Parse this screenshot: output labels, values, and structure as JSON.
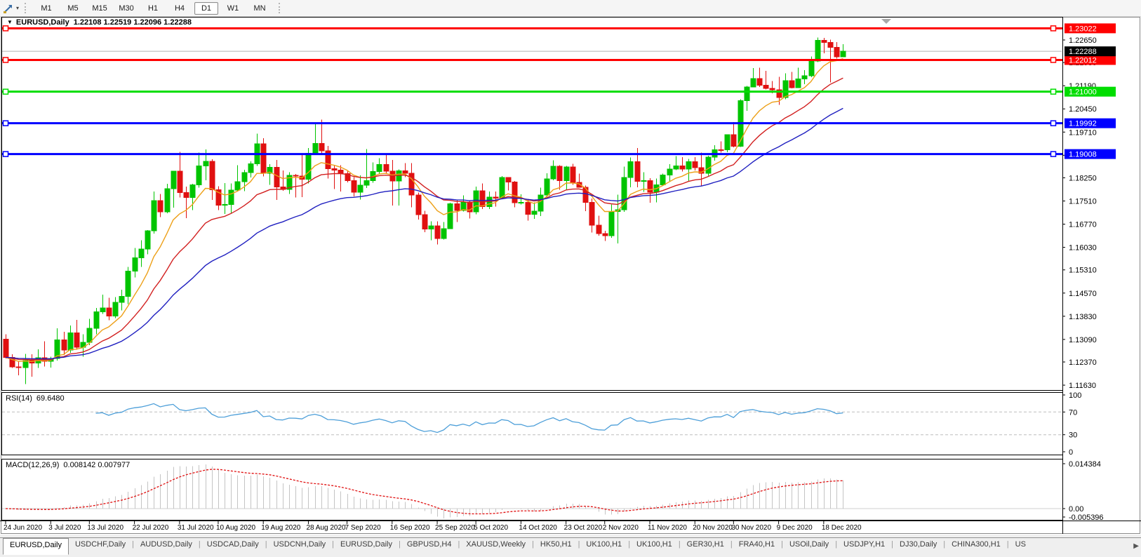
{
  "toolbar": {
    "timeframes": [
      "M1",
      "M5",
      "M15",
      "M30",
      "H1",
      "H4",
      "D1",
      "W1",
      "MN"
    ],
    "active_timeframe": "D1"
  },
  "chart_header": {
    "collapse_arrow": "▼",
    "title": "EURUSD,Daily",
    "ohlc": "1.22108 1.22519 1.22096 1.22288"
  },
  "chart_data": {
    "type": "candlestick",
    "symbol": "EURUSD",
    "period": "Daily",
    "grid": false,
    "bull_color": "#00C400",
    "bear_color": "#E01010",
    "current_bar": {
      "open": 1.22108,
      "high": 1.22519,
      "low": 1.22096,
      "close": 1.22288
    },
    "current_price": {
      "value": 1.22288,
      "label": "1.22288",
      "box_color": "#000000"
    },
    "price_axis_ticks": [
      "1.22650",
      "1.21930",
      "1.21190",
      "1.20450",
      "1.19710",
      "1.18970",
      "1.18250",
      "1.17510",
      "1.16770",
      "1.16030",
      "1.15310",
      "1.14570",
      "1.13830",
      "1.13090",
      "1.12370",
      "1.11630"
    ],
    "object_lines": [
      {
        "price": 1.23022,
        "label": "1.23022",
        "color": "#FF0000"
      },
      {
        "price": 1.22012,
        "label": "1.22012",
        "color": "#FF0000"
      },
      {
        "price": 1.21,
        "label": "1.21000",
        "color": "#00DD00"
      },
      {
        "price": 1.19992,
        "label": "1.19992",
        "color": "#0000FF"
      },
      {
        "price": 1.19008,
        "label": "1.19008",
        "color": "#0000FF"
      }
    ],
    "moving_averages": [
      {
        "period": 8,
        "color": "#EDA018"
      },
      {
        "period": 17,
        "color": "#D22020"
      },
      {
        "period": 34,
        "color": "#2020C0"
      }
    ],
    "candles": [
      [
        "24 Jun",
        1.131,
        1.1326,
        1.1248,
        1.1252
      ],
      [
        "25 Jun",
        1.1252,
        1.1262,
        1.1218,
        1.1221
      ],
      [
        "26 Jun",
        1.1221,
        1.1239,
        1.1194,
        1.1219
      ],
      [
        "29 Jun",
        1.1219,
        1.1263,
        1.1167,
        1.1242
      ],
      [
        "30 Jun",
        1.1242,
        1.1262,
        1.119,
        1.1234
      ],
      [
        "1 Jul",
        1.1234,
        1.1277,
        1.1218,
        1.1251
      ],
      [
        "2 Jul",
        1.1251,
        1.1303,
        1.1223,
        1.1239
      ],
      [
        "3 Jul",
        1.1239,
        1.1254,
        1.1219,
        1.1248
      ],
      [
        "6 Jul",
        1.1248,
        1.1345,
        1.1241,
        1.1308
      ],
      [
        "7 Jul",
        1.1308,
        1.1333,
        1.1259,
        1.1275
      ],
      [
        "8 Jul",
        1.1275,
        1.1353,
        1.1266,
        1.133
      ],
      [
        "9 Jul",
        1.133,
        1.1371,
        1.1276,
        1.1284
      ],
      [
        "10 Jul",
        1.1284,
        1.1325,
        1.1254,
        1.13
      ],
      [
        "13 Jul",
        1.13,
        1.1375,
        1.1291,
        1.1344
      ],
      [
        "14 Jul",
        1.1344,
        1.1409,
        1.1325,
        1.1397
      ],
      [
        "15 Jul",
        1.1397,
        1.1452,
        1.139,
        1.141
      ],
      [
        "16 Jul",
        1.141,
        1.1442,
        1.137,
        1.1384
      ],
      [
        "17 Jul",
        1.1384,
        1.1444,
        1.1377,
        1.1427
      ],
      [
        "20 Jul",
        1.1427,
        1.1468,
        1.1402,
        1.1446
      ],
      [
        "21 Jul",
        1.1446,
        1.154,
        1.1422,
        1.1527
      ],
      [
        "22 Jul",
        1.1527,
        1.1601,
        1.1507,
        1.157
      ],
      [
        "23 Jul",
        1.157,
        1.1626,
        1.154,
        1.1598
      ],
      [
        "24 Jul",
        1.1598,
        1.1658,
        1.1581,
        1.1656
      ],
      [
        "27 Jul",
        1.1656,
        1.1781,
        1.1647,
        1.1752
      ],
      [
        "28 Jul",
        1.1752,
        1.1773,
        1.17,
        1.1716
      ],
      [
        "29 Jul",
        1.1716,
        1.1806,
        1.1712,
        1.179
      ],
      [
        "30 Jul",
        1.179,
        1.1847,
        1.173,
        1.1846
      ],
      [
        "31 Jul",
        1.1846,
        1.1908,
        1.1762,
        1.1778
      ],
      [
        "3 Aug",
        1.1778,
        1.1797,
        1.1696,
        1.1762
      ],
      [
        "4 Aug",
        1.1762,
        1.1806,
        1.1722,
        1.1803
      ],
      [
        "5 Aug",
        1.1803,
        1.1905,
        1.1793,
        1.1863
      ],
      [
        "6 Aug",
        1.1863,
        1.1916,
        1.1817,
        1.1877
      ],
      [
        "7 Aug",
        1.1877,
        1.1884,
        1.1754,
        1.1787
      ],
      [
        "10 Aug",
        1.1787,
        1.1798,
        1.1722,
        1.1738
      ],
      [
        "11 Aug",
        1.1738,
        1.1808,
        1.171,
        1.174
      ],
      [
        "12 Aug",
        1.174,
        1.1807,
        1.1711,
        1.1786
      ],
      [
        "13 Aug",
        1.1786,
        1.1865,
        1.1782,
        1.1813
      ],
      [
        "14 Aug",
        1.1813,
        1.1851,
        1.1782,
        1.1842
      ],
      [
        "17 Aug",
        1.1842,
        1.1877,
        1.1826,
        1.187
      ],
      [
        "18 Aug",
        1.187,
        1.1966,
        1.1863,
        1.1933
      ],
      [
        "19 Aug",
        1.1933,
        1.1952,
        1.1829,
        1.1839
      ],
      [
        "20 Aug",
        1.1839,
        1.1869,
        1.1803,
        1.1858
      ],
      [
        "21 Aug",
        1.1858,
        1.1882,
        1.1754,
        1.1796
      ],
      [
        "24 Aug",
        1.1796,
        1.1848,
        1.1783,
        1.1788
      ],
      [
        "25 Aug",
        1.1788,
        1.1843,
        1.1773,
        1.1833
      ],
      [
        "26 Aug",
        1.1833,
        1.1837,
        1.1762,
        1.1831
      ],
      [
        "27 Aug",
        1.1831,
        1.19,
        1.1763,
        1.182
      ],
      [
        "28 Aug",
        1.182,
        1.192,
        1.1807,
        1.1903
      ],
      [
        "31 Aug",
        1.1903,
        1.1998,
        1.1898,
        1.1935
      ],
      [
        "1 Sep",
        1.1935,
        1.2011,
        1.1898,
        1.1911
      ],
      [
        "2 Sep",
        1.1911,
        1.1927,
        1.1823,
        1.1854
      ],
      [
        "3 Sep",
        1.1854,
        1.1865,
        1.1789,
        1.185
      ],
      [
        "4 Sep",
        1.185,
        1.1865,
        1.1781,
        1.1838
      ],
      [
        "7 Sep",
        1.1838,
        1.1848,
        1.181,
        1.1816
      ],
      [
        "8 Sep",
        1.1816,
        1.1827,
        1.1766,
        1.1779
      ],
      [
        "9 Sep",
        1.1779,
        1.1833,
        1.1756,
        1.1801
      ],
      [
        "10 Sep",
        1.1801,
        1.1917,
        1.1792,
        1.1816
      ],
      [
        "11 Sep",
        1.1816,
        1.1874,
        1.1809,
        1.1845
      ],
      [
        "14 Sep",
        1.1845,
        1.1888,
        1.1838,
        1.1867
      ],
      [
        "15 Sep",
        1.1867,
        1.19,
        1.1839,
        1.1846
      ],
      [
        "16 Sep",
        1.1846,
        1.1882,
        1.1737,
        1.1815
      ],
      [
        "17 Sep",
        1.1815,
        1.1852,
        1.1736,
        1.1847
      ],
      [
        "18 Sep",
        1.1847,
        1.1872,
        1.1827,
        1.1839
      ],
      [
        "21 Sep",
        1.1839,
        1.1872,
        1.1731,
        1.177
      ],
      [
        "22 Sep",
        1.177,
        1.1778,
        1.1692,
        1.1707
      ],
      [
        "23 Sep",
        1.1707,
        1.172,
        1.1651,
        1.1661
      ],
      [
        "24 Sep",
        1.1661,
        1.1686,
        1.1626,
        1.1672
      ],
      [
        "25 Sep",
        1.1672,
        1.1686,
        1.1612,
        1.1631
      ],
      [
        "28 Sep",
        1.1631,
        1.1684,
        1.1628,
        1.1663
      ],
      [
        "29 Sep",
        1.1663,
        1.1745,
        1.1662,
        1.1742
      ],
      [
        "30 Sep",
        1.1742,
        1.1755,
        1.1684,
        1.1721
      ],
      [
        "1 Oct",
        1.1721,
        1.1769,
        1.1717,
        1.1748
      ],
      [
        "2 Oct",
        1.1748,
        1.1752,
        1.1695,
        1.1716
      ],
      [
        "5 Oct",
        1.1716,
        1.1797,
        1.1708,
        1.1784
      ],
      [
        "6 Oct",
        1.1784,
        1.1807,
        1.1725,
        1.1733
      ],
      [
        "7 Oct",
        1.1733,
        1.1781,
        1.1725,
        1.1763
      ],
      [
        "8 Oct",
        1.1763,
        1.1781,
        1.1733,
        1.176
      ],
      [
        "9 Oct",
        1.176,
        1.1831,
        1.1758,
        1.1826
      ],
      [
        "12 Oct",
        1.1826,
        1.1827,
        1.1785,
        1.1812
      ],
      [
        "13 Oct",
        1.1812,
        1.1815,
        1.1731,
        1.1745
      ],
      [
        "14 Oct",
        1.1745,
        1.1772,
        1.174,
        1.1746
      ],
      [
        "15 Oct",
        1.1746,
        1.1758,
        1.1688,
        1.1708
      ],
      [
        "16 Oct",
        1.1708,
        1.1747,
        1.1694,
        1.1718
      ],
      [
        "19 Oct",
        1.1718,
        1.1794,
        1.1703,
        1.177
      ],
      [
        "20 Oct",
        1.177,
        1.184,
        1.176,
        1.1822
      ],
      [
        "21 Oct",
        1.1822,
        1.1881,
        1.1817,
        1.1862
      ],
      [
        "22 Oct",
        1.1862,
        1.1865,
        1.1787,
        1.1816
      ],
      [
        "23 Oct",
        1.1816,
        1.1863,
        1.1786,
        1.186
      ],
      [
        "26 Oct",
        1.186,
        1.187,
        1.1803,
        1.181
      ],
      [
        "27 Oct",
        1.181,
        1.1838,
        1.1793,
        1.1795
      ],
      [
        "28 Oct",
        1.1795,
        1.18,
        1.1718,
        1.1746
      ],
      [
        "29 Oct",
        1.1746,
        1.1759,
        1.165,
        1.1674
      ],
      [
        "30 Oct",
        1.1674,
        1.1704,
        1.164,
        1.1647
      ],
      [
        "2 Nov",
        1.1647,
        1.1656,
        1.1623,
        1.164
      ],
      [
        "3 Nov",
        1.164,
        1.174,
        1.1633,
        1.1717
      ],
      [
        "4 Nov",
        1.1717,
        1.1771,
        1.1615,
        1.1723
      ],
      [
        "5 Nov",
        1.1723,
        1.1861,
        1.1716,
        1.1826
      ],
      [
        "6 Nov",
        1.1826,
        1.189,
        1.1795,
        1.1876
      ],
      [
        "9 Nov",
        1.1876,
        1.192,
        1.1795,
        1.1814
      ],
      [
        "10 Nov",
        1.1814,
        1.1843,
        1.178,
        1.1816
      ],
      [
        "11 Nov",
        1.1816,
        1.1824,
        1.1745,
        1.1779
      ],
      [
        "12 Nov",
        1.1779,
        1.1823,
        1.1747,
        1.1803
      ],
      [
        "13 Nov",
        1.1803,
        1.1838,
        1.1799,
        1.1834
      ],
      [
        "16 Nov",
        1.1834,
        1.1869,
        1.1814,
        1.1853
      ],
      [
        "17 Nov",
        1.1853,
        1.1894,
        1.185,
        1.1863
      ],
      [
        "18 Nov",
        1.1863,
        1.1891,
        1.1845,
        1.1853
      ],
      [
        "19 Nov",
        1.1853,
        1.1885,
        1.1815,
        1.1876
      ],
      [
        "20 Nov",
        1.1876,
        1.1891,
        1.1848,
        1.1857
      ],
      [
        "23 Nov",
        1.1857,
        1.1906,
        1.18,
        1.1839
      ],
      [
        "24 Nov",
        1.1839,
        1.1895,
        1.1832,
        1.1891
      ],
      [
        "25 Nov",
        1.1891,
        1.1929,
        1.188,
        1.1915
      ],
      [
        "26 Nov",
        1.1915,
        1.1941,
        1.1905,
        1.1914
      ],
      [
        "27 Nov",
        1.1914,
        1.1963,
        1.1907,
        1.1963
      ],
      [
        "30 Nov",
        1.1963,
        1.2003,
        1.1922,
        1.1926
      ],
      [
        "1 Dec",
        1.1926,
        1.2076,
        1.1923,
        1.2071
      ],
      [
        "2 Dec",
        1.2071,
        1.2118,
        1.2039,
        1.2115
      ],
      [
        "3 Dec",
        1.2115,
        1.2175,
        1.2114,
        1.2142
      ],
      [
        "4 Dec",
        1.2142,
        1.2177,
        1.2115,
        1.2121
      ],
      [
        "7 Dec",
        1.2121,
        1.2166,
        1.2107,
        1.2111
      ],
      [
        "8 Dec",
        1.2111,
        1.2134,
        1.2095,
        1.2106
      ],
      [
        "9 Dec",
        1.2106,
        1.2147,
        1.2058,
        1.2081
      ],
      [
        "10 Dec",
        1.2081,
        1.2159,
        1.2076,
        1.2135
      ],
      [
        "11 Dec",
        1.2135,
        1.2163,
        1.211,
        1.2113
      ],
      [
        "14 Dec",
        1.2113,
        1.2177,
        1.2112,
        1.2141
      ],
      [
        "15 Dec",
        1.2141,
        1.2169,
        1.2124,
        1.2151
      ],
      [
        "16 Dec",
        1.2151,
        1.2212,
        1.2146,
        1.2198
      ],
      [
        "17 Dec",
        1.2198,
        1.2273,
        1.2195,
        1.2264
      ],
      [
        "18 Dec",
        1.2264,
        1.2272,
        1.2222,
        1.2257
      ],
      [
        "21 Dec",
        1.2257,
        1.2266,
        1.2129,
        1.2242
      ],
      [
        "22 Dec",
        1.2242,
        1.2258,
        1.2206,
        1.2211
      ],
      [
        "23 Dec",
        1.22108,
        1.22519,
        1.22096,
        1.22288
      ]
    ],
    "x_axis_labels": [
      {
        "text": "24 Jun 2020",
        "bar": 0
      },
      {
        "text": "3 Jul 2020",
        "bar": 7
      },
      {
        "text": "13 Jul 2020",
        "bar": 13
      },
      {
        "text": "22 Jul 2020",
        "bar": 20
      },
      {
        "text": "31 Jul 2020",
        "bar": 27
      },
      {
        "text": "10 Aug 2020",
        "bar": 33
      },
      {
        "text": "19 Aug 2020",
        "bar": 40
      },
      {
        "text": "28 Aug 2020",
        "bar": 47
      },
      {
        "text": "7 Sep 2020",
        "bar": 53
      },
      {
        "text": "16 Sep 2020",
        "bar": 60
      },
      {
        "text": "25 Sep 2020",
        "bar": 67
      },
      {
        "text": "5 Oct 2020",
        "bar": 73
      },
      {
        "text": "14 Oct 2020",
        "bar": 80
      },
      {
        "text": "23 Oct 2020",
        "bar": 87
      },
      {
        "text": "2 Nov 2020",
        "bar": 93
      },
      {
        "text": "11 Nov 2020",
        "bar": 100
      },
      {
        "text": "20 Nov 2020",
        "bar": 107
      },
      {
        "text": "30 Nov 2020",
        "bar": 113
      },
      {
        "text": "9 Dec 2020",
        "bar": 120
      },
      {
        "text": "18 Dec 2020",
        "bar": 127
      }
    ],
    "indicators": {
      "rsi": {
        "name": "RSI(14)",
        "value": "69.6480",
        "period": 14,
        "line_color": "#4D9FD9",
        "level_lines": [
          70,
          30
        ],
        "axis_labels": [
          {
            "text": "100",
            "value": 100
          },
          {
            "text": "70",
            "value": 70
          },
          {
            "text": "30",
            "value": 30
          },
          {
            "text": "0",
            "value": 0
          }
        ]
      },
      "macd": {
        "name": "MACD(12,26,9)",
        "values": "0.008142 0.007977",
        "fast": 12,
        "slow": 26,
        "signal": 9,
        "hist_color": "#C4C4C4",
        "signal_color": "#E01010",
        "axis_labels": [
          {
            "text": "0.014384",
            "value": 0.014384
          },
          {
            "text": "0.00",
            "value": 0
          },
          {
            "text": "-0.005396",
            "value": -0.005396
          }
        ]
      }
    }
  },
  "tabs": {
    "items": [
      "EURUSD,Daily",
      "USDCHF,Daily",
      "AUDUSD,Daily",
      "USDCAD,Daily",
      "USDCNH,Daily",
      "EURUSD,Daily",
      "GBPUSD,H4",
      "XAUUSD,Weekly",
      "HK50,H1",
      "UK100,H1",
      "UK100,H1",
      "GER30,H1",
      "FRA40,H1",
      "USOil,Daily",
      "USDJPY,H1",
      "DJ30,Daily",
      "CHINA300,H1",
      "US"
    ],
    "active_index": 0,
    "scroll_right_arrow": "▶"
  }
}
